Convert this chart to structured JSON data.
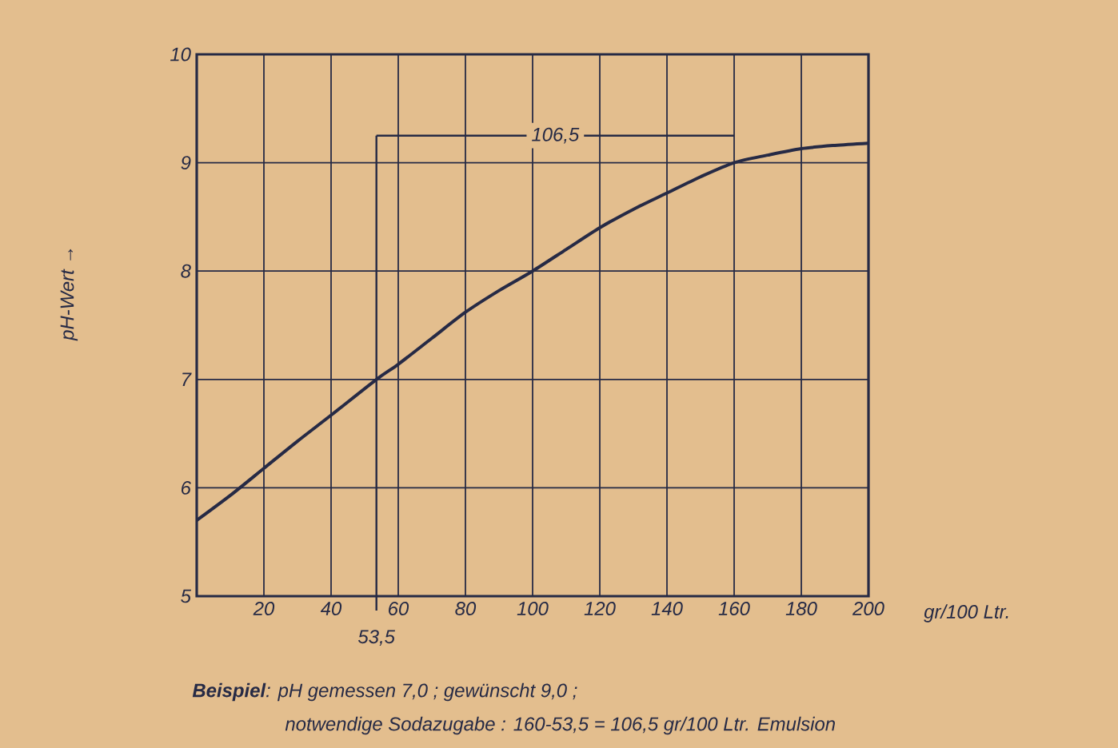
{
  "chart_data": {
    "type": "line",
    "xlabel": "gr/100 Ltr.",
    "ylabel": "pH-Wert →",
    "series": [
      {
        "color": "#262a45",
        "x": [
          0,
          10,
          20,
          30,
          40,
          53.5,
          60,
          70,
          80,
          90,
          100,
          110,
          120,
          130,
          140,
          150,
          160,
          170,
          180,
          190,
          200
        ],
        "values": [
          5.7,
          5.93,
          6.18,
          6.43,
          6.67,
          7.0,
          7.14,
          7.38,
          7.62,
          7.82,
          8.0,
          8.2,
          8.4,
          8.57,
          8.72,
          8.87,
          9.0,
          9.07,
          9.13,
          9.16,
          9.18
        ]
      },
      {
        "color": "#262a45",
        "x": [
          53.5,
          160
        ],
        "values": [
          9.25,
          9.25
        ]
      }
    ],
    "xlim": [
      0,
      200
    ],
    "ylim": [
      5,
      10
    ],
    "xticks": [
      20,
      40,
      60,
      80,
      100,
      120,
      140,
      160,
      180,
      200
    ],
    "yticks": [
      5,
      6,
      7,
      8,
      9,
      10
    ],
    "grid": true,
    "ref_lines": [
      {
        "axis": "x",
        "value": 53.5,
        "label": "53,5"
      }
    ],
    "annotations": [
      {
        "text": "106,5",
        "x": 106.75,
        "y": 9.25
      },
      "**Beispiel**: pH gemessen 7,0 ; gewünscht 9,0 ;",
      "notwendige Sodazugabe : 160-53,5 = 106,5 gr/100 Ltr. Emulsion"
    ]
  }
}
